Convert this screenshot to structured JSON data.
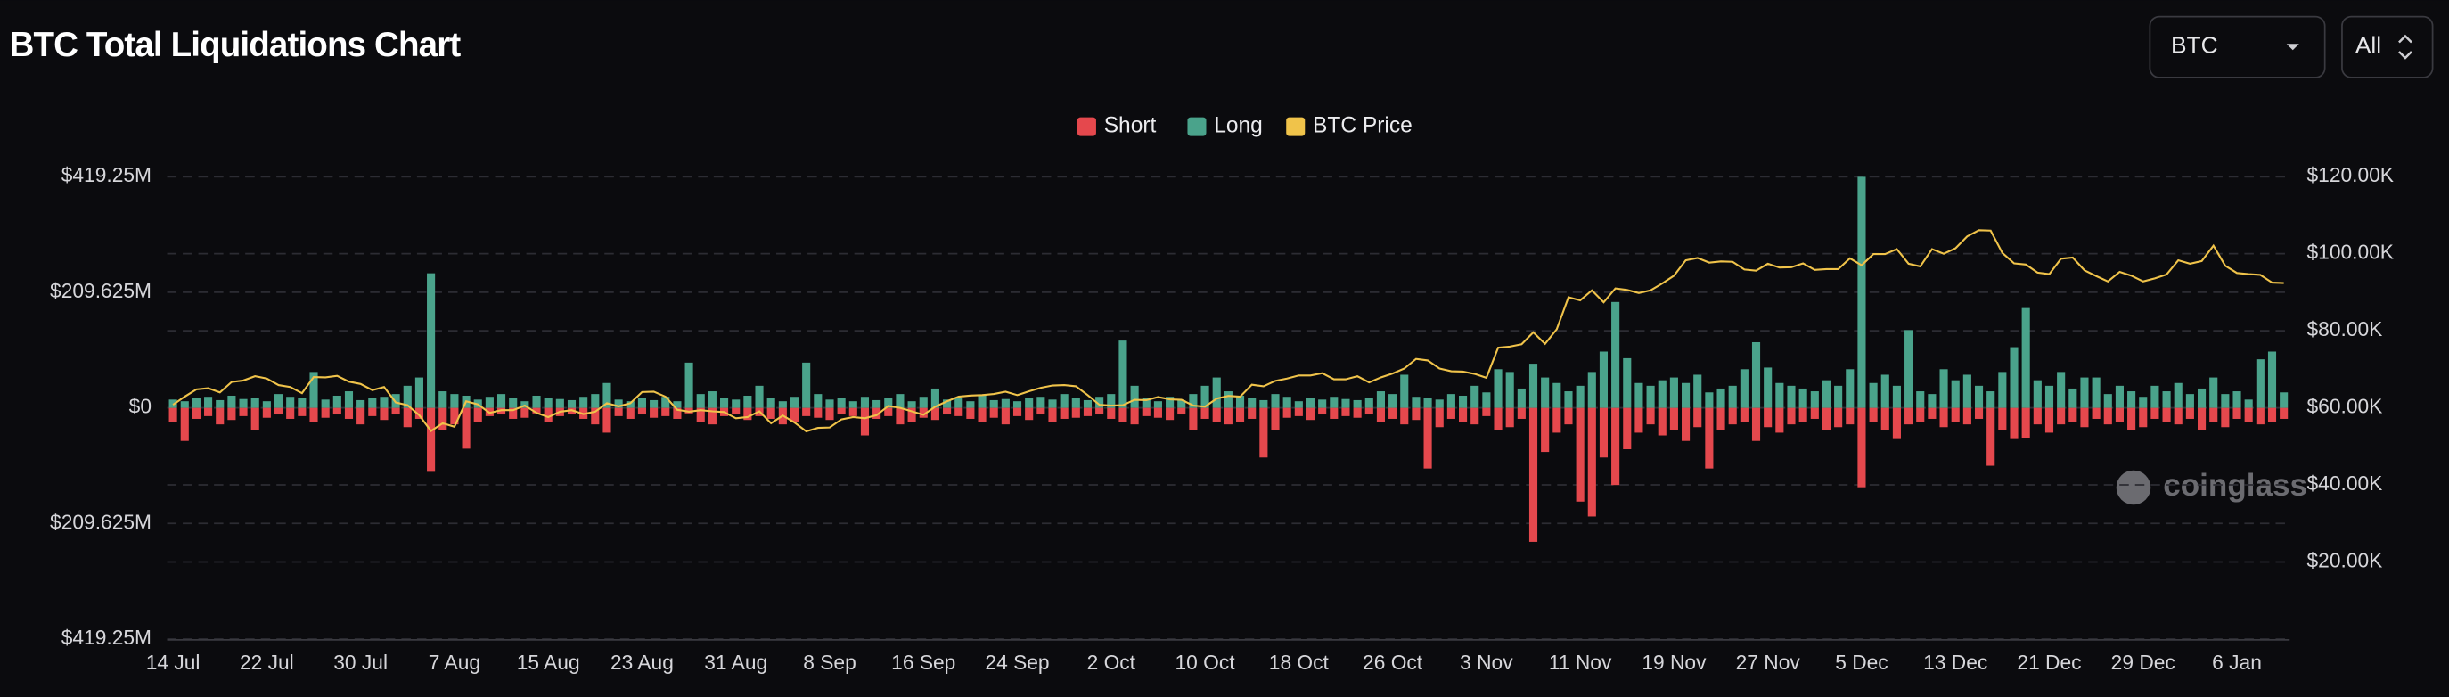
{
  "title": "BTC Total Liquidations Chart",
  "controls": {
    "symbol": "BTC",
    "range": "All"
  },
  "watermark": "coinglass",
  "chart_data": {
    "type": "bar",
    "categories": [
      "14 Jul",
      null,
      null,
      null,
      null,
      null,
      null,
      null,
      "22 Jul",
      null,
      null,
      null,
      null,
      null,
      null,
      null,
      "30 Jul",
      null,
      null,
      null,
      null,
      null,
      null,
      null,
      "7 Aug",
      null,
      null,
      null,
      null,
      null,
      null,
      null,
      "15 Aug",
      null,
      null,
      null,
      null,
      null,
      null,
      null,
      "23 Aug",
      null,
      null,
      null,
      null,
      null,
      null,
      null,
      "31 Aug",
      null,
      null,
      null,
      null,
      null,
      null,
      null,
      "8 Sep",
      null,
      null,
      null,
      null,
      null,
      null,
      null,
      "16 Sep",
      null,
      null,
      null,
      null,
      null,
      null,
      null,
      "24 Sep",
      null,
      null,
      null,
      null,
      null,
      null,
      null,
      "2 Oct",
      null,
      null,
      null,
      null,
      null,
      null,
      null,
      "10 Oct",
      null,
      null,
      null,
      null,
      null,
      null,
      null,
      "18 Oct",
      null,
      null,
      null,
      null,
      null,
      null,
      null,
      "26 Oct",
      null,
      null,
      null,
      null,
      null,
      null,
      null,
      "3 Nov",
      null,
      null,
      null,
      null,
      null,
      null,
      null,
      "11 Nov",
      null,
      null,
      null,
      null,
      null,
      null,
      null,
      "19 Nov",
      null,
      null,
      null,
      null,
      null,
      null,
      null,
      "27 Nov",
      null,
      null,
      null,
      null,
      null,
      null,
      null,
      "5 Dec",
      null,
      null,
      null,
      null,
      null,
      null,
      null,
      "13 Dec",
      null,
      null,
      null,
      null,
      null,
      null,
      null,
      "21 Dec",
      null,
      null,
      null,
      null,
      null,
      null,
      null,
      "29 Dec",
      null,
      null,
      null,
      null,
      null,
      null,
      null,
      "6 Jan",
      null,
      null,
      null,
      null
    ],
    "series": [
      {
        "name": "Short",
        "color": "#e5484d",
        "values": [
          -25,
          -60,
          -20,
          -15,
          -30,
          -22,
          -15,
          -40,
          -18,
          -12,
          -20,
          -15,
          -25,
          -18,
          -12,
          -20,
          -30,
          -15,
          -22,
          -12,
          -35,
          -20,
          -116,
          -40,
          -30,
          -74,
          -25,
          -15,
          -12,
          -20,
          -18,
          -10,
          -25,
          -15,
          -12,
          -20,
          -30,
          -45,
          -15,
          -20,
          -12,
          -18,
          -15,
          -20,
          -10,
          -25,
          -30,
          -15,
          -12,
          -22,
          -15,
          -20,
          -30,
          -25,
          -15,
          -18,
          -22,
          -12,
          -15,
          -50,
          -20,
          -15,
          -30,
          -25,
          -18,
          -22,
          -12,
          -15,
          -20,
          -25,
          -18,
          -30,
          -15,
          -22,
          -12,
          -25,
          -20,
          -18,
          -15,
          -12,
          -20,
          -25,
          -30,
          -15,
          -18,
          -22,
          -12,
          -40,
          -20,
          -25,
          -30,
          -25,
          -20,
          -90,
          -40,
          -18,
          -15,
          -22,
          -12,
          -20,
          -15,
          -18,
          -12,
          -25,
          -20,
          -30,
          -22,
          -110,
          -35,
          -20,
          -25,
          -30,
          -15,
          -40,
          -35,
          -20,
          -243,
          -80,
          -45,
          -30,
          -170,
          -197,
          -90,
          -140,
          -75,
          -45,
          -30,
          -50,
          -40,
          -60,
          -35,
          -110,
          -40,
          -30,
          -25,
          -60,
          -35,
          -45,
          -30,
          -25,
          -20,
          -40,
          -35,
          -30,
          -144,
          -25,
          -40,
          -55,
          -30,
          -25,
          -20,
          -35,
          -25,
          -30,
          -20,
          -105,
          -40,
          -55,
          -54,
          -30,
          -45,
          -30,
          -25,
          -35,
          -20,
          -30,
          -25,
          -40,
          -35,
          -20,
          -25,
          -30,
          -20,
          -40,
          -25,
          -35,
          -20,
          -25,
          -30,
          -25,
          -20
        ]
      },
      {
        "name": "Long",
        "color": "#4aa38b",
        "values": [
          15,
          12,
          18,
          20,
          14,
          22,
          16,
          18,
          12,
          25,
          20,
          18,
          65,
          15,
          22,
          30,
          14,
          18,
          20,
          25,
          40,
          55,
          244,
          30,
          25,
          22,
          15,
          20,
          25,
          18,
          12,
          22,
          18,
          16,
          14,
          20,
          25,
          45,
          15,
          12,
          18,
          14,
          20,
          12,
          82,
          25,
          30,
          18,
          15,
          22,
          40,
          18,
          12,
          20,
          82,
          25,
          15,
          18,
          12,
          20,
          14,
          18,
          25,
          12,
          20,
          35,
          15,
          18,
          12,
          22,
          14,
          16,
          12,
          18,
          20,
          15,
          25,
          18,
          14,
          20,
          25,
          122,
          40,
          18,
          12,
          20,
          14,
          25,
          40,
          55,
          30,
          22,
          18,
          14,
          25,
          20,
          12,
          18,
          15,
          20,
          16,
          14,
          18,
          30,
          25,
          60,
          20,
          18,
          15,
          25,
          22,
          40,
          28,
          70,
          65,
          35,
          80,
          55,
          45,
          30,
          40,
          65,
          102,
          192,
          90,
          45,
          40,
          50,
          55,
          45,
          60,
          28,
          35,
          40,
          70,
          119,
          73,
          45,
          40,
          35,
          30,
          50,
          40,
          70,
          419,
          45,
          60,
          40,
          141,
          30,
          25,
          70,
          50,
          60,
          40,
          30,
          65,
          110,
          181,
          50,
          40,
          65,
          35,
          55,
          55,
          25,
          40,
          30,
          20,
          40,
          30,
          45,
          25,
          35,
          55,
          25,
          30,
          15,
          88,
          102,
          28
        ]
      },
      {
        "name": "BTC Price",
        "color": "#f0c34a",
        "type": "line",
        "axis": "y2",
        "values": [
          60.8,
          62.9,
          64.8,
          65.1,
          64.0,
          66.7,
          67.1,
          68.2,
          67.6,
          65.9,
          65.4,
          63.8,
          68.0,
          67.9,
          68.3,
          66.8,
          66.2,
          64.6,
          65.4,
          61.4,
          60.7,
          58.1,
          54.0,
          56.0,
          55.1,
          61.7,
          60.9,
          58.7,
          59.4,
          59.4,
          60.6,
          58.7,
          57.6,
          59.0,
          59.4,
          58.4,
          59.0,
          61.2,
          60.4,
          61.2,
          64.1,
          64.2,
          62.9,
          59.5,
          59.0,
          59.4,
          59.1,
          58.9,
          57.3,
          57.6,
          59.1,
          56.0,
          58.0,
          56.2,
          53.9,
          54.8,
          54.9,
          57.0,
          57.6,
          57.3,
          58.1,
          60.5,
          60.0,
          59.1,
          58.2,
          60.3,
          61.7,
          62.9,
          63.2,
          63.3,
          63.6,
          64.2,
          63.3,
          64.3,
          65.2,
          65.8,
          65.9,
          65.6,
          63.3,
          60.8,
          60.6,
          60.7,
          62.1,
          62.0,
          62.8,
          62.2,
          62.1,
          60.6,
          60.3,
          62.4,
          63.1,
          62.9,
          66.0,
          65.6,
          67.0,
          67.6,
          68.4,
          68.4,
          69.0,
          67.4,
          67.4,
          68.2,
          66.6,
          67.9,
          68.9,
          70.2,
          72.7,
          72.3,
          70.2,
          69.5,
          69.4,
          68.8,
          67.8,
          75.6,
          75.9,
          76.5,
          79.6,
          76.6,
          80.4,
          88.7,
          87.9,
          90.5,
          87.4,
          91.0,
          90.6,
          89.8,
          90.5,
          92.3,
          94.3,
          98.3,
          98.9,
          97.7,
          98.0,
          97.9,
          95.9,
          95.6,
          97.4,
          96.4,
          96.5,
          97.5,
          95.8,
          96.0,
          96.0,
          98.8,
          97.0,
          99.9,
          99.9,
          101.2,
          97.4,
          96.7,
          101.2,
          100.0,
          101.4,
          104.5,
          106.1,
          106.0,
          100.2,
          97.5,
          97.2,
          95.1,
          94.7,
          98.7,
          99.0,
          95.7,
          94.2,
          92.8,
          95.3,
          94.3,
          92.8,
          93.6,
          94.6,
          98.3,
          97.4,
          98.1,
          102.1,
          96.9,
          95.0,
          94.7,
          94.5,
          92.5,
          92.4
        ]
      }
    ],
    "ylim": [
      -419.25,
      419.25
    ],
    "yticks": [
      {
        "value": 419.25,
        "label": "$419.25M"
      },
      {
        "value": 209.625,
        "label": "$209.625M"
      },
      {
        "value": 0,
        "label": "$0"
      },
      {
        "value": -209.625,
        "label": "$209.625M"
      },
      {
        "value": -419.25,
        "label": "$419.25M"
      }
    ],
    "y2lim": [
      0,
      120
    ],
    "y2ticks": [
      {
        "value": 20,
        "label": "$20.00K"
      },
      {
        "value": 40,
        "label": "$40.00K"
      },
      {
        "value": 60,
        "label": "$60.00K"
      },
      {
        "value": 80,
        "label": "$80.00K"
      },
      {
        "value": 100,
        "label": "$100.00K"
      },
      {
        "value": 120,
        "label": "$120.00K"
      }
    ],
    "grid": true,
    "legend": "top"
  }
}
